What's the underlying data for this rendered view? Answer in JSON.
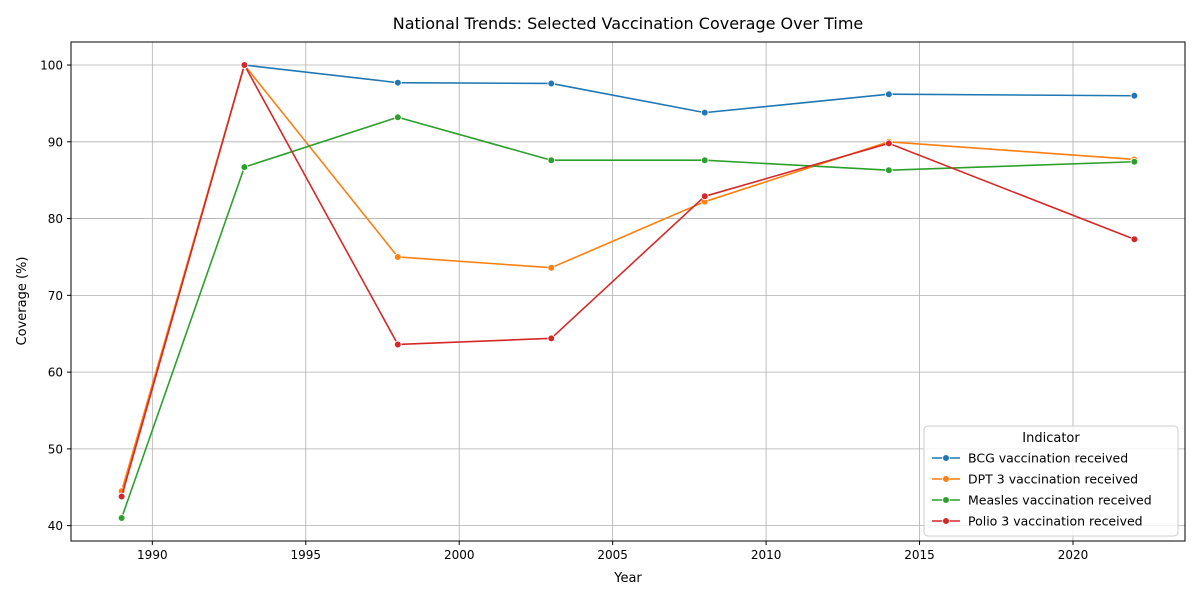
{
  "chart_data": {
    "type": "line",
    "title": "National Trends: Selected Vaccination Coverage Over Time",
    "xlabel": "Year",
    "ylabel": "Coverage (%)",
    "xlim": [
      1987.35,
      2023.65
    ],
    "ylim": [
      38.0,
      103.0
    ],
    "x_ticks": [
      1990,
      1995,
      2000,
      2005,
      2010,
      2015,
      2020
    ],
    "y_ticks": [
      40,
      50,
      60,
      70,
      80,
      90,
      100
    ],
    "grid": true,
    "legend": {
      "title": "Indicator",
      "placement": "bottom-right"
    },
    "x": [
      1989,
      1993,
      1998,
      2003,
      2008,
      2014,
      2022
    ],
    "series": [
      {
        "name": "BCG vaccination received",
        "color": "#1f77b4",
        "values": [
          null,
          100.0,
          97.7,
          97.6,
          93.8,
          96.2,
          96.0
        ]
      },
      {
        "name": "DPT 3 vaccination received",
        "color": "#ff7f0e",
        "values": [
          44.5,
          100.0,
          75.0,
          73.6,
          82.2,
          90.0,
          87.7
        ]
      },
      {
        "name": "Measles vaccination received",
        "color": "#2ca02c",
        "values": [
          41.0,
          86.7,
          93.2,
          87.6,
          87.6,
          86.3,
          87.4
        ]
      },
      {
        "name": "Polio 3 vaccination received",
        "color": "#d62728",
        "values": [
          43.8,
          100.0,
          63.6,
          64.4,
          82.9,
          89.8,
          77.3
        ]
      }
    ]
  }
}
